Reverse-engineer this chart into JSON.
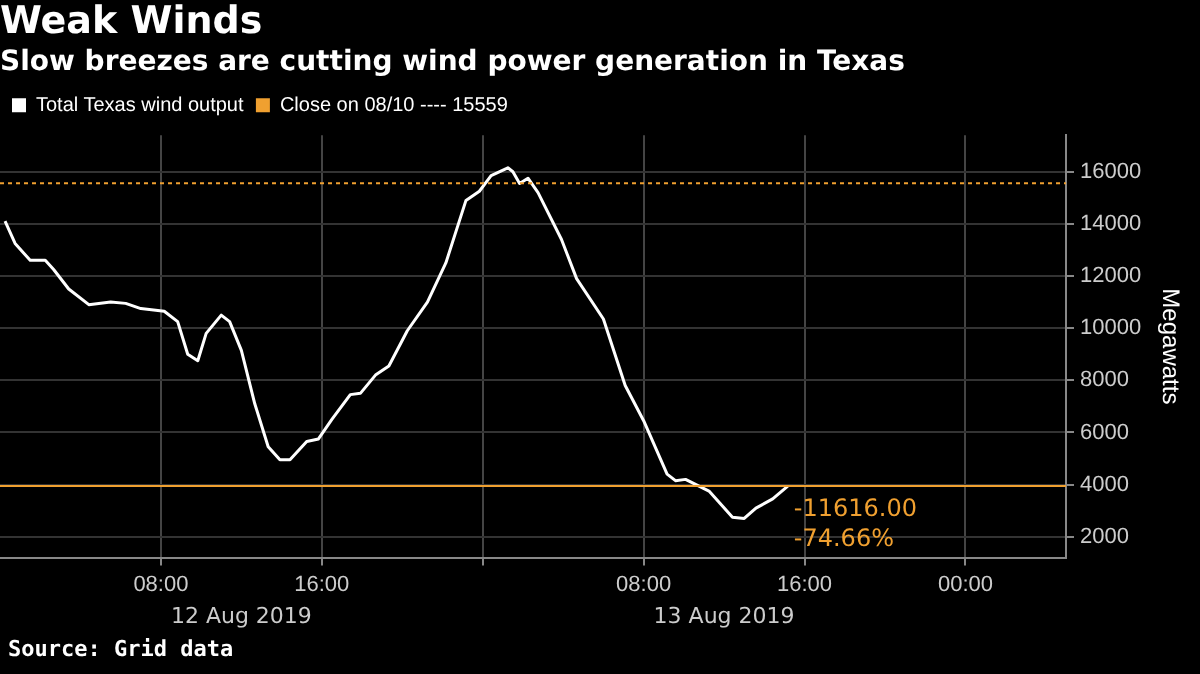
{
  "chart_data": {
    "type": "line",
    "title": "Weak Winds",
    "subtitle": "Slow breezes are cutting wind power generation in Texas",
    "ylabel": "Megawatts",
    "x": [
      "2019-08-12T00:15",
      "2019-08-12T00:45",
      "2019-08-12T01:30",
      "2019-08-12T02:15",
      "2019-08-12T02:40",
      "2019-08-12T03:25",
      "2019-08-12T04:25",
      "2019-08-12T05:30",
      "2019-08-12T06:15",
      "2019-08-12T07:00",
      "2019-08-12T08:10",
      "2019-08-12T08:50",
      "2019-08-12T09:20",
      "2019-08-12T09:50",
      "2019-08-12T10:15",
      "2019-08-12T11:00",
      "2019-08-12T11:25",
      "2019-08-12T12:00",
      "2019-08-12T12:40",
      "2019-08-12T13:20",
      "2019-08-12T13:55",
      "2019-08-12T14:25",
      "2019-08-12T15:15",
      "2019-08-12T15:50",
      "2019-08-12T16:30",
      "2019-08-12T17:25",
      "2019-08-12T17:55",
      "2019-08-12T18:40",
      "2019-08-12T19:20",
      "2019-08-12T20:15",
      "2019-08-12T21:15",
      "2019-08-12T22:10",
      "2019-08-12T23:10",
      "2019-08-12T23:50",
      "2019-08-13T00:25",
      "2019-08-13T01:15",
      "2019-08-13T01:30",
      "2019-08-13T01:50",
      "2019-08-13T02:15",
      "2019-08-13T02:45",
      "2019-08-13T03:55",
      "2019-08-13T04:40",
      "2019-08-13T06:00",
      "2019-08-13T07:05",
      "2019-08-13T08:00",
      "2019-08-13T09:10",
      "2019-08-13T09:35",
      "2019-08-13T10:05",
      "2019-08-13T11:15",
      "2019-08-13T12:25",
      "2019-08-13T13:00",
      "2019-08-13T13:35",
      "2019-08-13T14:25",
      "2019-08-13T15:10"
    ],
    "series": [
      {
        "name": "Total Texas wind output",
        "color": "#ffffff",
        "values": [
          14100,
          13250,
          12600,
          12600,
          12250,
          11500,
          10900,
          11000,
          10950,
          10750,
          10650,
          10250,
          9000,
          8750,
          9800,
          10500,
          10250,
          9150,
          7100,
          5450,
          4950,
          4950,
          5650,
          5750,
          6500,
          7450,
          7500,
          8200,
          8550,
          9900,
          11000,
          12500,
          14900,
          15250,
          15850,
          16150,
          16000,
          15550,
          15750,
          15200,
          13400,
          11900,
          10350,
          7800,
          6450,
          4400,
          4150,
          4200,
          3750,
          2750,
          2700,
          3100,
          3450,
          3943
        ]
      }
    ],
    "xlim": [
      "2019-08-12T00:00",
      "2019-08-14T05:00"
    ],
    "xticks": [
      {
        "value": "2019-08-12T08:00",
        "label": "08:00"
      },
      {
        "value": "2019-08-12T16:00",
        "label": "16:00"
      },
      {
        "value": "2019-08-13T00:00",
        "label": null
      },
      {
        "value": "2019-08-13T08:00",
        "label": "08:00"
      },
      {
        "value": "2019-08-13T16:00",
        "label": "16:00"
      },
      {
        "value": "2019-08-14T00:00",
        "label": "00:00"
      }
    ],
    "ylim": [
      1200,
      17400
    ],
    "yticks": [
      2000,
      4000,
      6000,
      8000,
      10000,
      12000,
      14000,
      16000
    ],
    "ref_lines": [
      {
        "axis": "y",
        "value": 15559,
        "label": "Close on 08/10 ---- 15559",
        "color": "#f0a030",
        "line_style": "dotted"
      },
      {
        "axis": "y",
        "value": 3943,
        "color": "#f0a030",
        "line_style": "solid"
      }
    ],
    "annotations": [
      {
        "text": "-11616.00",
        "x": "2019-08-13T15:10",
        "y": 3943
      },
      {
        "text": "-74.66%",
        "x": "2019-08-13T15:10",
        "y": 3943
      },
      "12 Aug 2019",
      "13 Aug 2019",
      "Source: Grid data"
    ],
    "grid": true,
    "legend": "top left",
    "marker": "none",
    "line_style": "solid"
  }
}
